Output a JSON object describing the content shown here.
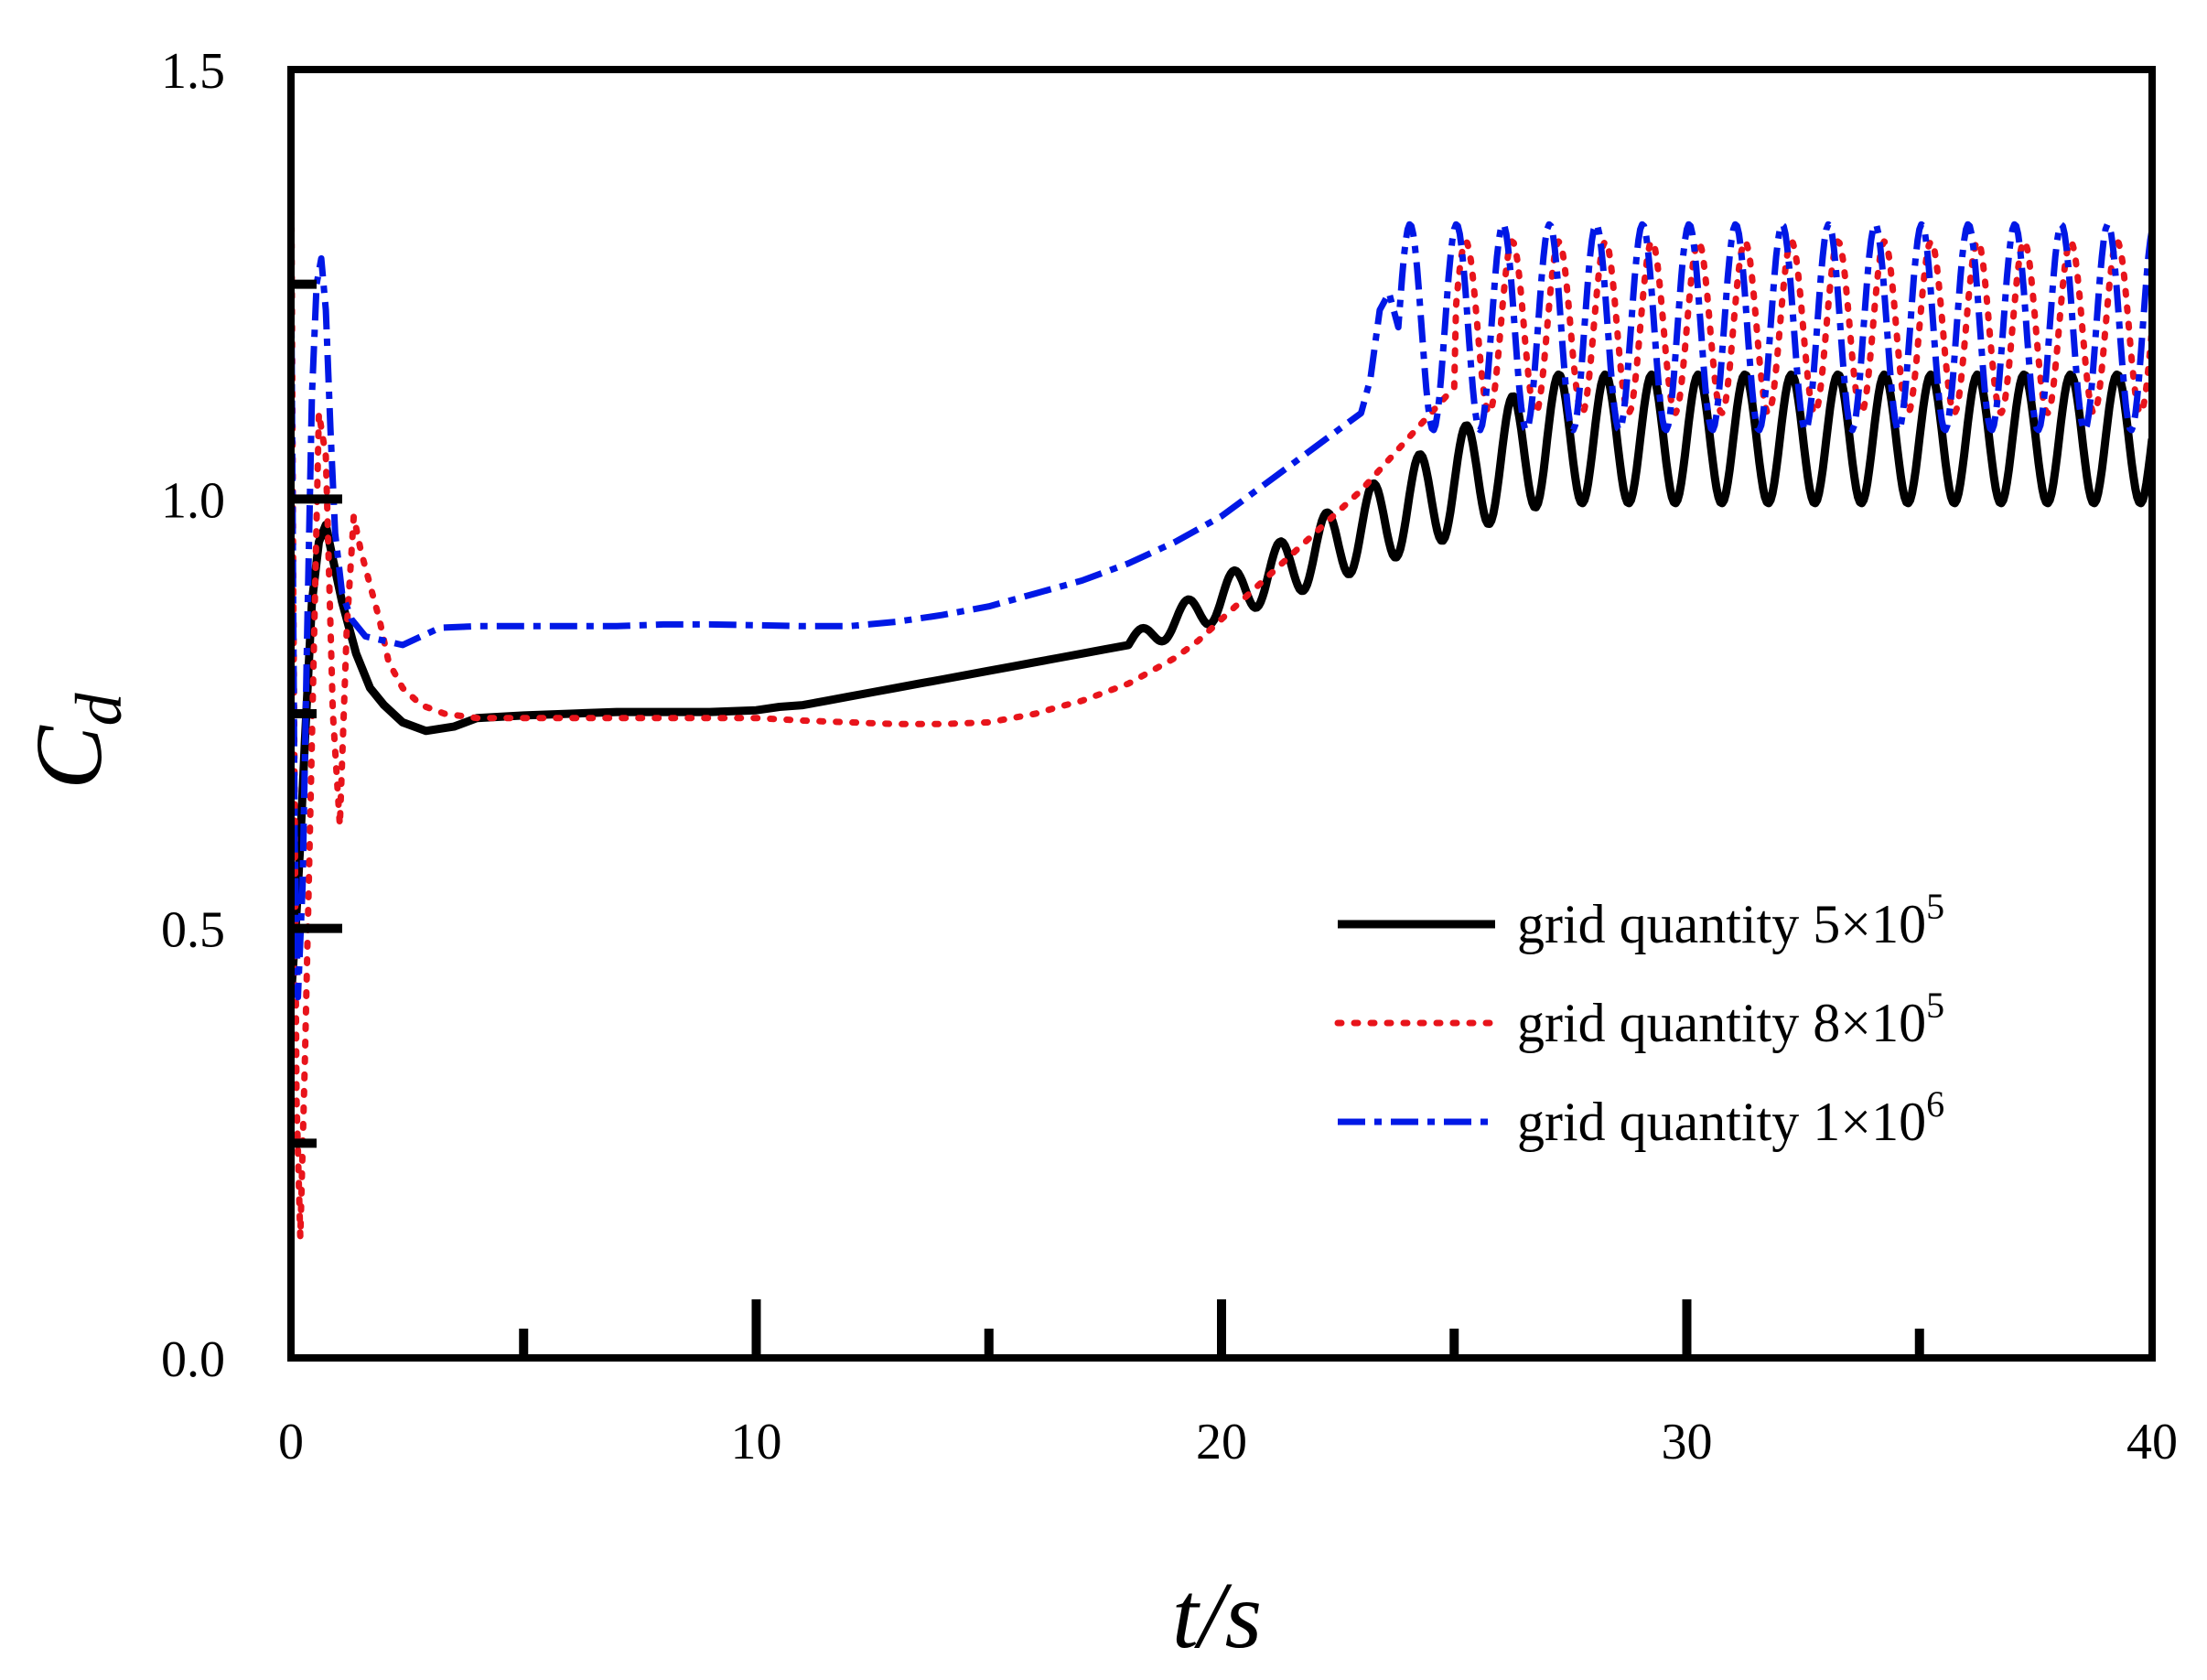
{
  "chart_data": {
    "type": "line",
    "title": "",
    "xlabel": "t/s",
    "ylabel_main": "C",
    "ylabel_sub": "d",
    "xlim": [
      0,
      40
    ],
    "ylim": [
      0,
      1.5
    ],
    "xticks": [
      0,
      10,
      20,
      30,
      40
    ],
    "xtick_labels": [
      "0",
      "10",
      "20",
      "30",
      "40"
    ],
    "yticks": [
      0,
      0.5,
      1,
      1.5
    ],
    "ytick_labels": [
      "0.0",
      "0.5",
      "1.0",
      "1.5"
    ],
    "grid": false,
    "legend_position": "bottom-right",
    "series": [
      {
        "name": "grid quantity",
        "mantissa": "5×10",
        "exponent": "5",
        "color": "#000000",
        "style": "solid",
        "points": [
          [
            0,
            0.42
          ],
          [
            0.1,
            0.5
          ],
          [
            0.2,
            0.6
          ],
          [
            0.3,
            0.72
          ],
          [
            0.45,
            0.88
          ],
          [
            0.6,
            0.95
          ],
          [
            0.75,
            0.97
          ],
          [
            0.9,
            0.93
          ],
          [
            1.1,
            0.88
          ],
          [
            1.4,
            0.82
          ],
          [
            1.7,
            0.78
          ],
          [
            2.0,
            0.76
          ],
          [
            2.4,
            0.74
          ],
          [
            2.9,
            0.73
          ],
          [
            3.5,
            0.735
          ],
          [
            4.0,
            0.745
          ],
          [
            5.0,
            0.748
          ],
          [
            6.0,
            0.75
          ],
          [
            7.0,
            0.752
          ],
          [
            8.0,
            0.752
          ],
          [
            9.0,
            0.752
          ],
          [
            10.0,
            0.754
          ],
          [
            10.5,
            0.758
          ],
          [
            11.0,
            0.76
          ],
          [
            11.5,
            0.765
          ],
          [
            12.0,
            0.77
          ],
          [
            12.5,
            0.775
          ],
          [
            13.0,
            0.78
          ],
          [
            13.5,
            0.785
          ],
          [
            14.0,
            0.79
          ],
          [
            14.5,
            0.795
          ],
          [
            15.0,
            0.8
          ],
          [
            15.5,
            0.805
          ],
          [
            16.0,
            0.81
          ],
          [
            16.5,
            0.815
          ],
          [
            17.0,
            0.82
          ],
          [
            17.5,
            0.825
          ],
          [
            18.0,
            0.83
          ]
        ],
        "osc": {
          "start": 18.0,
          "end": 40.0,
          "base_start": 0.83,
          "base_end": 1.07,
          "amp_start": 0.01,
          "amp_end": 0.075,
          "period": 1.0,
          "ramp_end": 27.0
        }
      },
      {
        "name": "grid quantity",
        "mantissa": "8×10",
        "exponent": "5",
        "color": "#e8141b",
        "style": "dotted",
        "points": [
          [
            0,
            1.45
          ],
          [
            0.05,
            0.9
          ],
          [
            0.12,
            0.3
          ],
          [
            0.2,
            0.14
          ],
          [
            0.3,
            0.35
          ],
          [
            0.45,
            0.72
          ],
          [
            0.6,
            1.1
          ],
          [
            0.75,
            1.05
          ],
          [
            0.9,
            0.75
          ],
          [
            1.05,
            0.62
          ],
          [
            1.2,
            0.85
          ],
          [
            1.35,
            0.98
          ],
          [
            1.5,
            0.94
          ],
          [
            1.7,
            0.9
          ],
          [
            1.9,
            0.86
          ],
          [
            2.1,
            0.81
          ],
          [
            2.4,
            0.78
          ],
          [
            2.8,
            0.76
          ],
          [
            3.3,
            0.75
          ],
          [
            4.0,
            0.745
          ],
          [
            5.0,
            0.745
          ],
          [
            6.0,
            0.745
          ],
          [
            7.0,
            0.745
          ],
          [
            8.0,
            0.745
          ],
          [
            9.0,
            0.745
          ],
          [
            10.0,
            0.745
          ],
          [
            11.0,
            0.742
          ],
          [
            12.0,
            0.74
          ],
          [
            13.0,
            0.738
          ],
          [
            14.0,
            0.738
          ],
          [
            15.0,
            0.74
          ],
          [
            15.5,
            0.745
          ],
          [
            16.0,
            0.75
          ],
          [
            16.5,
            0.758
          ],
          [
            17.0,
            0.765
          ],
          [
            17.5,
            0.775
          ],
          [
            18.0,
            0.785
          ],
          [
            18.5,
            0.8
          ],
          [
            19.0,
            0.815
          ],
          [
            19.5,
            0.835
          ],
          [
            20.0,
            0.86
          ],
          [
            20.5,
            0.885
          ],
          [
            21.0,
            0.91
          ],
          [
            21.5,
            0.935
          ],
          [
            22.0,
            0.96
          ],
          [
            22.5,
            0.985
          ],
          [
            23.0,
            1.01
          ],
          [
            23.5,
            1.04
          ],
          [
            24.0,
            1.07
          ],
          [
            24.5,
            1.1
          ],
          [
            25.0,
            1.13
          ]
        ],
        "osc": {
          "start": 25.0,
          "end": 40.0,
          "base_start": 1.2,
          "base_end": 1.2,
          "amp_start": 0.1,
          "amp_end": 0.1,
          "period": 1.0,
          "ramp_end": 26.0
        }
      },
      {
        "name": "grid quantity",
        "mantissa": "1×10",
        "exponent": "6",
        "color": "#0018e6",
        "style": "dashdot",
        "points": [
          [
            0,
            1.3
          ],
          [
            0.08,
            0.6
          ],
          [
            0.15,
            0.42
          ],
          [
            0.25,
            0.55
          ],
          [
            0.35,
            0.85
          ],
          [
            0.45,
            1.12
          ],
          [
            0.55,
            1.25
          ],
          [
            0.65,
            1.28
          ],
          [
            0.75,
            1.22
          ],
          [
            0.85,
            1.08
          ],
          [
            0.95,
            0.96
          ],
          [
            1.1,
            0.89
          ],
          [
            1.3,
            0.86
          ],
          [
            1.6,
            0.84
          ],
          [
            2.0,
            0.835
          ],
          [
            2.4,
            0.83
          ],
          [
            2.8,
            0.84
          ],
          [
            3.2,
            0.85
          ],
          [
            4.0,
            0.852
          ],
          [
            5.0,
            0.852
          ],
          [
            6.0,
            0.852
          ],
          [
            7.0,
            0.852
          ],
          [
            8.0,
            0.854
          ],
          [
            9.0,
            0.854
          ],
          [
            10.0,
            0.853
          ],
          [
            11.0,
            0.852
          ],
          [
            12.0,
            0.852
          ],
          [
            13.0,
            0.857
          ],
          [
            14.0,
            0.865
          ],
          [
            15.0,
            0.875
          ],
          [
            16.0,
            0.89
          ],
          [
            17.0,
            0.905
          ],
          [
            18.0,
            0.925
          ],
          [
            19.0,
            0.95
          ],
          [
            19.5,
            0.965
          ],
          [
            20.0,
            0.98
          ],
          [
            20.5,
            1.0
          ],
          [
            21.0,
            1.02
          ],
          [
            21.5,
            1.04
          ],
          [
            22.0,
            1.06
          ],
          [
            22.5,
            1.08
          ],
          [
            23.0,
            1.1
          ],
          [
            23.2,
            1.14
          ],
          [
            23.4,
            1.22
          ],
          [
            23.6,
            1.24
          ],
          [
            23.8,
            1.2
          ]
        ],
        "osc": {
          "start": 23.8,
          "end": 40.0,
          "base_start": 1.2,
          "base_end": 1.2,
          "amp_start": 0.12,
          "amp_end": 0.12,
          "period": 1.0,
          "ramp_end": 25.0
        }
      }
    ]
  }
}
